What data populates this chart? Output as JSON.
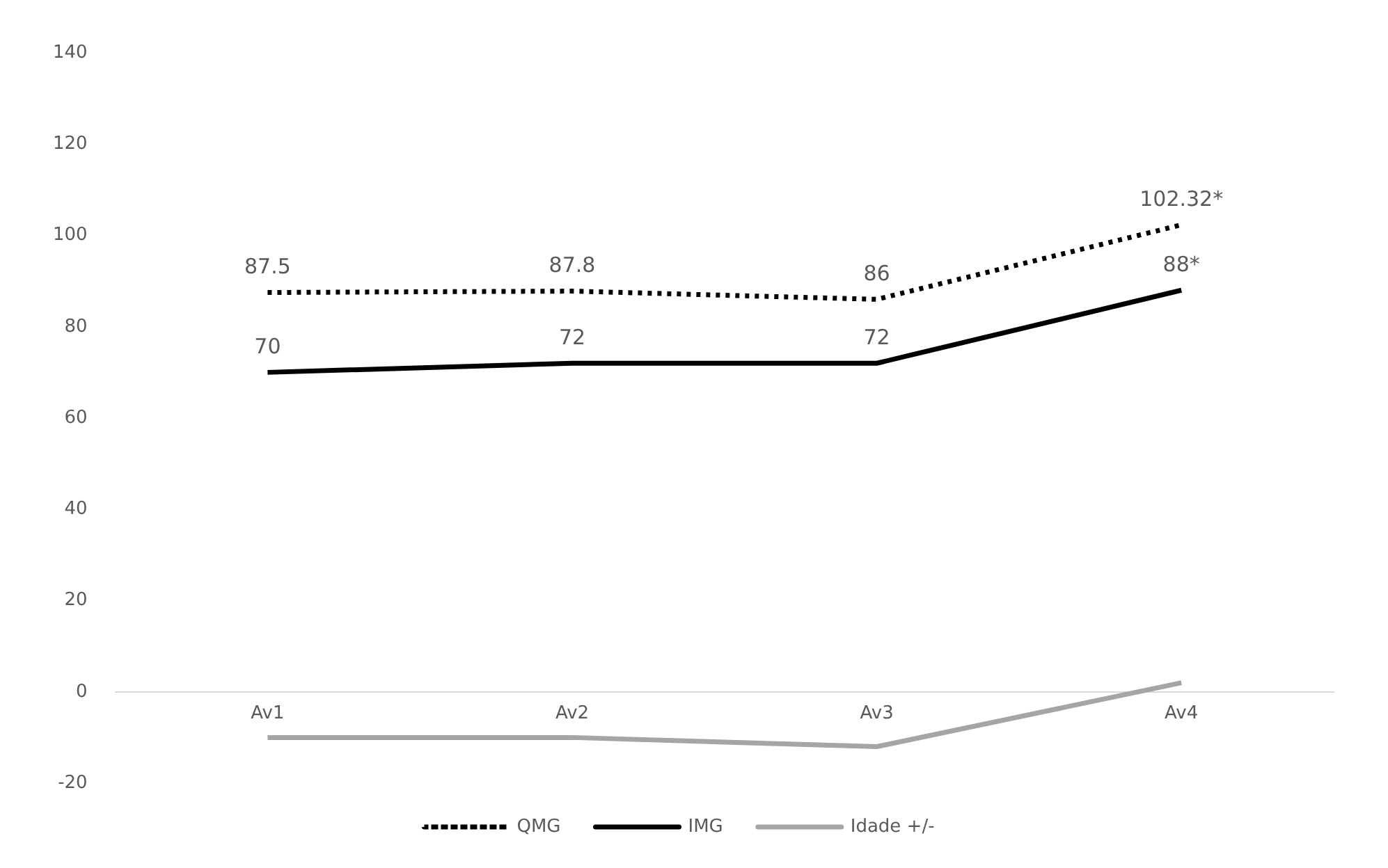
{
  "chart_data": {
    "type": "line",
    "categories": [
      "Av1",
      "Av2",
      "Av3",
      "Av4"
    ],
    "series": [
      {
        "name": "QMG",
        "color": "#000000",
        "line_style": "dotted",
        "values": [
          87.5,
          87.8,
          86,
          102.32
        ],
        "value_labels": [
          "87.5",
          "87.8",
          "86",
          "102.32*"
        ]
      },
      {
        "name": "IMG",
        "color": "#000000",
        "line_style": "solid",
        "values": [
          70,
          72,
          72,
          88
        ],
        "value_labels": [
          "70",
          "72",
          "72",
          "88*"
        ]
      },
      {
        "name": "Idade +/-",
        "color": "#a5a5a5",
        "line_style": "solid",
        "values": [
          -10,
          -10,
          -12,
          2
        ]
      }
    ],
    "ylim": [
      -20,
      140
    ],
    "yticks": [
      -20,
      0,
      20,
      40,
      60,
      80,
      100,
      120,
      140
    ],
    "grid": false,
    "legend": "bottom",
    "marker": "none"
  }
}
